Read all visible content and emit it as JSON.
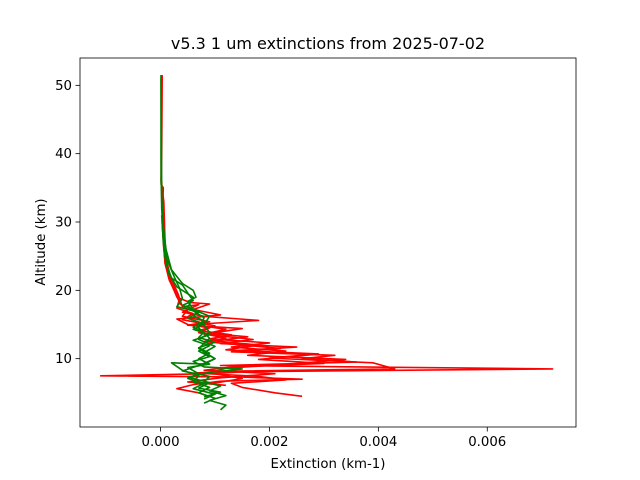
{
  "chart_data": {
    "type": "line",
    "title": "v5.3 1 um extinctions from 2025-07-02",
    "xlabel": "Extinction (km-1)",
    "ylabel": "Altitude (km)",
    "xlim": [
      -0.00148,
      0.00763
    ],
    "ylim": [
      0.0,
      54.0
    ],
    "xticks": [
      {
        "value": 0.0,
        "label": "0.000"
      },
      {
        "value": 0.002,
        "label": "0.002"
      },
      {
        "value": 0.004,
        "label": "0.004"
      },
      {
        "value": 0.006,
        "label": "0.006"
      }
    ],
    "yticks": [
      {
        "value": 10,
        "label": "10"
      },
      {
        "value": 20,
        "label": "20"
      },
      {
        "value": 30,
        "label": "30"
      },
      {
        "value": 40,
        "label": "40"
      },
      {
        "value": 50,
        "label": "50"
      }
    ],
    "grid": false,
    "legend": "none",
    "series": [
      {
        "color": "#ff0000",
        "points": [
          [
            3e-05,
            51.5
          ],
          [
            2e-05,
            40
          ],
          [
            1e-05,
            35.5
          ],
          [
            5e-05,
            35
          ],
          [
            3e-05,
            30
          ],
          [
            6e-05,
            26
          ],
          [
            0.00012,
            23
          ],
          [
            0.00022,
            20.5
          ],
          [
            0.0003,
            19
          ],
          [
            0.00055,
            18.2
          ],
          [
            0.0009,
            18
          ],
          [
            0.0006,
            17.2
          ],
          [
            0.0011,
            16.4
          ],
          [
            0.0003,
            15.8
          ],
          [
            0.0005,
            15
          ],
          [
            0.0009,
            14.5
          ],
          [
            0.0007,
            13.8
          ],
          [
            0.0012,
            13
          ],
          [
            0.0008,
            12.5
          ],
          [
            0.0015,
            12
          ],
          [
            0.0022,
            11.5
          ],
          [
            0.0013,
            11
          ],
          [
            0.0032,
            10.5
          ],
          [
            0.0026,
            10
          ],
          [
            0.0036,
            9.5
          ],
          [
            0.0011,
            9
          ],
          [
            0.0072,
            8.5
          ],
          [
            0.0016,
            8.1
          ],
          [
            0.0009,
            7.8
          ],
          [
            -0.0011,
            7.5
          ],
          [
            0.0015,
            7.3
          ],
          [
            0.0026,
            7
          ],
          [
            0.0011,
            6.7
          ],
          [
            0.0006,
            6.2
          ],
          [
            0.0003,
            5.6
          ],
          [
            0.0007,
            5
          ],
          [
            0.0009,
            4.4
          ]
        ]
      },
      {
        "color": "#ff0000",
        "points": [
          [
            2e-05,
            51.5
          ],
          [
            1e-05,
            36
          ],
          [
            6e-05,
            33
          ],
          [
            9e-05,
            25
          ],
          [
            0.00018,
            22
          ],
          [
            0.00032,
            19.5
          ],
          [
            0.0004,
            17.6
          ],
          [
            0.0007,
            17.9
          ],
          [
            0.0004,
            16.8
          ],
          [
            0.0008,
            16.2
          ],
          [
            0.0018,
            15.6
          ],
          [
            0.0006,
            15
          ],
          [
            0.0012,
            14.3
          ],
          [
            0.0008,
            13.6
          ],
          [
            0.0017,
            12.8
          ],
          [
            0.0011,
            12.2
          ],
          [
            0.0025,
            11.7
          ],
          [
            0.0014,
            11.2
          ],
          [
            0.0029,
            10.7
          ],
          [
            0.002,
            10.1
          ],
          [
            0.0039,
            9.4
          ],
          [
            0.0043,
            8.5
          ],
          [
            0.0014,
            8.2
          ],
          [
            0.0006,
            7.9
          ],
          [
            0.0018,
            7.4
          ],
          [
            0.0023,
            6.9
          ],
          [
            0.0013,
            6.4
          ],
          [
            0.0015,
            5.8
          ],
          [
            0.0021,
            5
          ],
          [
            0.0026,
            4.5
          ]
        ]
      },
      {
        "color": "#ff0000",
        "points": [
          [
            2e-05,
            36
          ],
          [
            4e-05,
            30
          ],
          [
            8e-05,
            24
          ],
          [
            0.00016,
            21.5
          ],
          [
            0.00028,
            19.5
          ],
          [
            0.00036,
            18
          ],
          [
            0.0005,
            17.2
          ],
          [
            0.0004,
            16.2
          ],
          [
            0.0009,
            15.4
          ],
          [
            0.0005,
            14.9
          ],
          [
            0.0015,
            14.4
          ],
          [
            0.0009,
            13.7
          ],
          [
            0.0016,
            13.2
          ],
          [
            0.001,
            12.6
          ],
          [
            0.0018,
            12
          ],
          [
            0.0012,
            11.3
          ],
          [
            0.0028,
            10.6
          ],
          [
            0.0018,
            9.9
          ],
          [
            0.003,
            9.3
          ],
          [
            0.0013,
            8.8
          ],
          [
            0.0008,
            8.3
          ],
          [
            0.0021,
            7.8
          ],
          [
            0.0011,
            7.2
          ],
          [
            0.0005,
            6.6
          ],
          [
            0.0012,
            6.1
          ]
        ]
      },
      {
        "color": "#ff0000",
        "points": [
          [
            3e-05,
            30
          ],
          [
            7e-05,
            25
          ],
          [
            0.00015,
            21.8
          ],
          [
            0.00026,
            20.2
          ],
          [
            0.00035,
            18.8
          ],
          [
            0.0003,
            17.4
          ],
          [
            0.0006,
            16.6
          ],
          [
            0.0004,
            15.7
          ],
          [
            0.001,
            14.8
          ],
          [
            0.0007,
            14.1
          ],
          [
            0.0013,
            13.5
          ],
          [
            0.0009,
            12.9
          ],
          [
            0.002,
            12.3
          ],
          [
            0.0013,
            11.7
          ],
          [
            0.0023,
            11.1
          ],
          [
            0.0016,
            10.5
          ],
          [
            0.0034,
            9.9
          ],
          [
            0.0024,
            9.2
          ],
          [
            0.0012,
            8.6
          ],
          [
            0.0009,
            7.9
          ],
          [
            0.0015,
            7.1
          ],
          [
            0.0009,
            6.3
          ]
        ]
      },
      {
        "color": "#008000",
        "points": [
          [
            1e-05,
            51.5
          ],
          [
            1e-05,
            40
          ],
          [
            2e-05,
            32
          ],
          [
            5e-05,
            28
          ],
          [
            8e-05,
            25
          ],
          [
            0.00015,
            22.5
          ],
          [
            0.0003,
            20.5
          ],
          [
            0.0006,
            19
          ],
          [
            0.0005,
            17.5
          ],
          [
            0.0008,
            16
          ],
          [
            0.0007,
            14.5
          ],
          [
            0.0009,
            13
          ],
          [
            0.0007,
            11.5
          ],
          [
            0.001,
            10
          ],
          [
            0.0007,
            9
          ],
          [
            0.0004,
            8.2
          ],
          [
            0.0009,
            7.4
          ],
          [
            0.0008,
            6.6
          ],
          [
            0.0011,
            6
          ],
          [
            0.0009,
            5.3
          ],
          [
            0.0012,
            4.6
          ],
          [
            0.0009,
            3.9
          ],
          [
            0.0012,
            3.2
          ],
          [
            0.0011,
            2.5
          ]
        ]
      },
      {
        "color": "#008000",
        "points": [
          [
            1e-05,
            51
          ],
          [
            1e-05,
            36
          ],
          [
            4e-05,
            30
          ],
          [
            0.0001,
            26
          ],
          [
            0.0002,
            23
          ],
          [
            0.0004,
            21
          ],
          [
            0.0006,
            20
          ],
          [
            0.00065,
            19
          ],
          [
            0.0005,
            18.4
          ],
          [
            0.0006,
            17.2
          ],
          [
            0.0009,
            16.2
          ],
          [
            0.0008,
            15
          ],
          [
            0.0009,
            13.8
          ],
          [
            0.0007,
            12.8
          ],
          [
            0.001,
            11.8
          ],
          [
            0.0008,
            10.9
          ],
          [
            0.001,
            10
          ],
          [
            0.0008,
            9.2
          ],
          [
            0.0002,
            9.4
          ],
          [
            0.0004,
            8.3
          ],
          [
            0.0007,
            7.5
          ],
          [
            0.0006,
            6.6
          ],
          [
            0.0009,
            5.8
          ],
          [
            0.0007,
            5
          ],
          [
            0.001,
            4.2
          ],
          [
            0.0008,
            3.5
          ]
        ]
      },
      {
        "color": "#008000",
        "points": [
          [
            1e-05,
            51.5
          ],
          [
            2e-05,
            33
          ],
          [
            6e-05,
            28.5
          ],
          [
            0.00012,
            24.5
          ],
          [
            0.00025,
            22
          ],
          [
            0.00035,
            20.3
          ],
          [
            0.0004,
            18.8
          ],
          [
            0.0003,
            17.6
          ],
          [
            0.0007,
            16.8
          ],
          [
            0.0005,
            15.9
          ],
          [
            0.0008,
            15.1
          ],
          [
            0.0006,
            14.3
          ],
          [
            0.0009,
            13.5
          ],
          [
            0.0006,
            12.7
          ],
          [
            0.0009,
            11.9
          ],
          [
            0.0007,
            11.1
          ],
          [
            0.0009,
            10.3
          ],
          [
            0.0006,
            9.6
          ],
          [
            0.0008,
            8.8
          ],
          [
            0.0015,
            8.5
          ],
          [
            0.0009,
            8
          ],
          [
            0.0005,
            7.3
          ],
          [
            0.0009,
            6.5
          ],
          [
            0.0007,
            5.7
          ],
          [
            0.0011,
            5.1
          ],
          [
            0.0008,
            4.4
          ]
        ]
      },
      {
        "color": "#008000",
        "points": [
          [
            2e-05,
            31
          ],
          [
            5e-05,
            27
          ],
          [
            0.0001,
            24
          ],
          [
            0.0002,
            21.8
          ],
          [
            0.0004,
            20.8
          ],
          [
            0.0005,
            19.6
          ],
          [
            0.0006,
            18.5
          ],
          [
            0.0004,
            17.8
          ],
          [
            0.0007,
            17
          ],
          [
            0.0006,
            16.3
          ],
          [
            0.0008,
            15.5
          ],
          [
            0.0006,
            14.6
          ],
          [
            0.0008,
            13.9
          ],
          [
            0.0007,
            13.1
          ],
          [
            0.001,
            12.4
          ],
          [
            0.0007,
            11.6
          ],
          [
            0.0009,
            10.8
          ],
          [
            0.0007,
            10
          ],
          [
            0.0009,
            9.2
          ],
          [
            0.0005,
            8.7
          ],
          [
            0.0007,
            7.8
          ],
          [
            0.0005,
            7.1
          ],
          [
            0.0008,
            6.4
          ],
          [
            0.0006,
            5.6
          ],
          [
            0.001,
            4.8
          ],
          [
            0.0008,
            4.1
          ]
        ]
      }
    ]
  }
}
